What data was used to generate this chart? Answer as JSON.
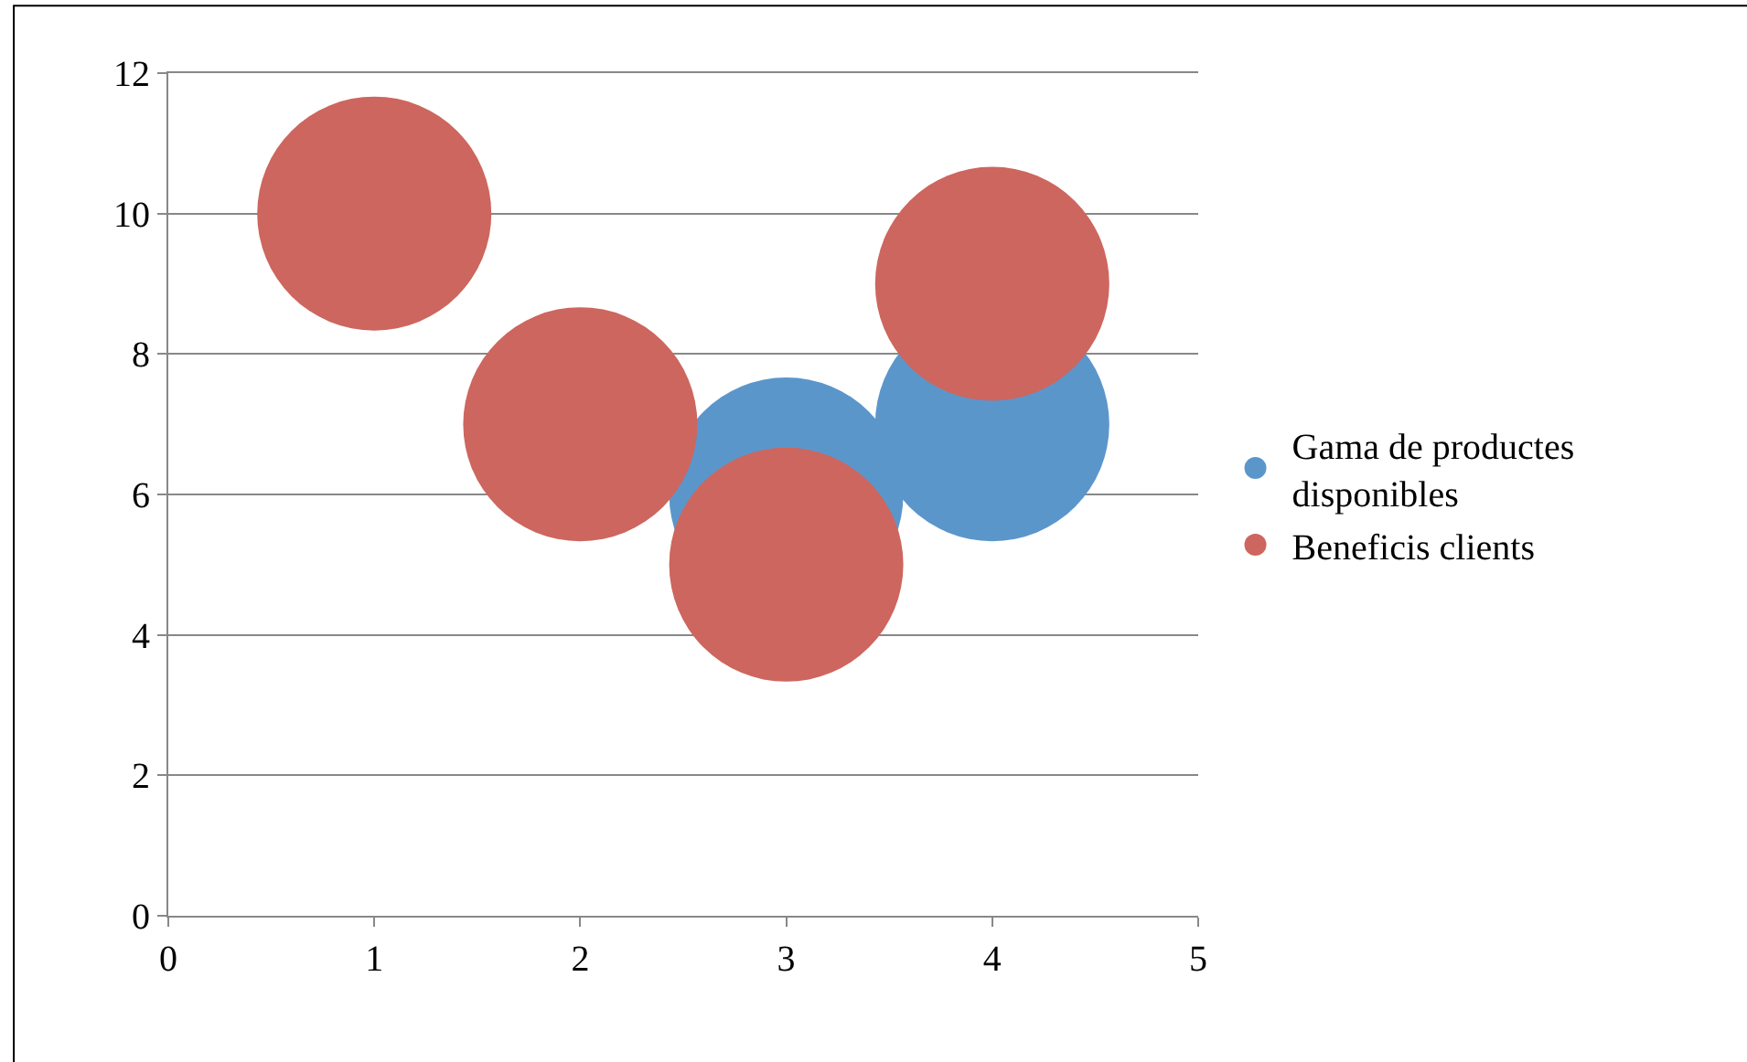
{
  "chart_data": {
    "type": "bubble",
    "series": [
      {
        "name": "Gama de productes disponibles",
        "color": "#5b96cb",
        "x": [
          3,
          4
        ],
        "values": [
          6,
          7
        ],
        "sizes": [
          1,
          1
        ]
      },
      {
        "name": "Beneficis clients",
        "color": "#cd665e",
        "x": [
          1,
          2,
          3,
          4
        ],
        "values": [
          10,
          7,
          5,
          9
        ],
        "sizes": [
          1,
          1,
          1,
          1
        ]
      }
    ],
    "xlim": [
      0,
      5
    ],
    "xticks": [
      0,
      1,
      2,
      3,
      4,
      5
    ],
    "ylim": [
      0,
      12
    ],
    "yticks": [
      0,
      2,
      4,
      6,
      8,
      10,
      12
    ],
    "grid": "y",
    "legend": "right"
  }
}
